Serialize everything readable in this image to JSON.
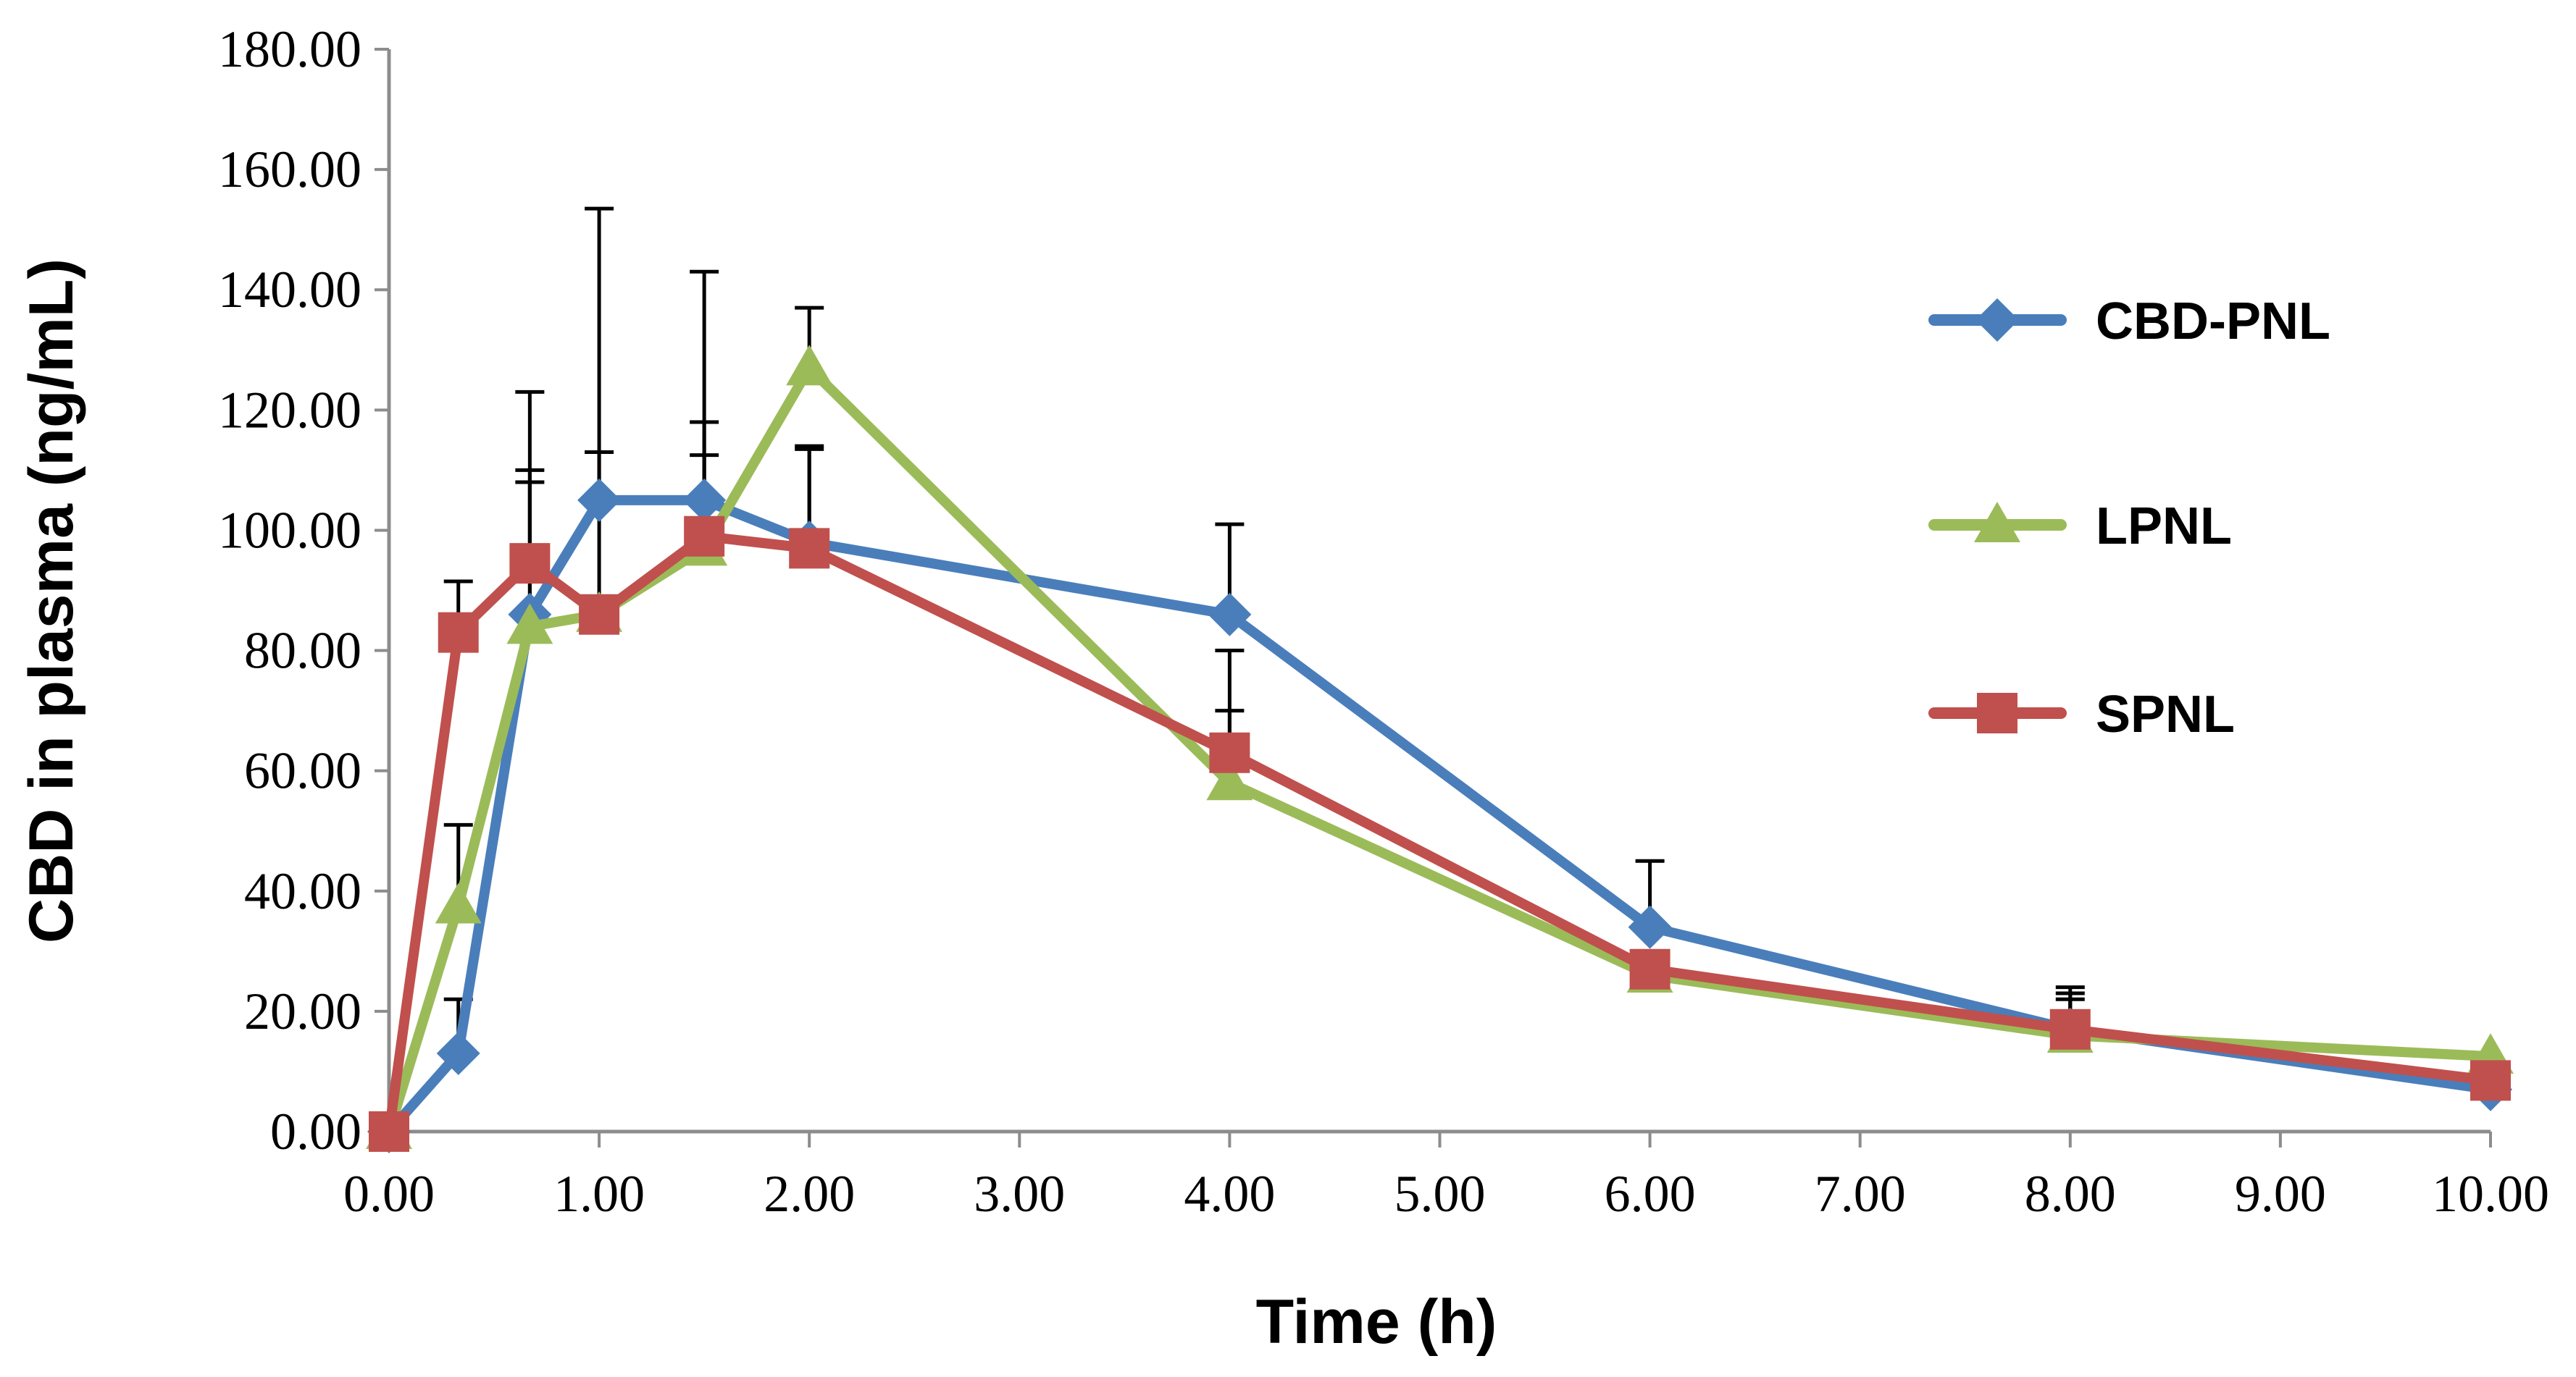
{
  "chart_data": {
    "type": "line",
    "title": "",
    "xlabel": "Time (h)",
    "ylabel": "CBD in plasma (ng/mL)",
    "xlim": [
      0,
      10
    ],
    "ylim": [
      0,
      180
    ],
    "xticks": [
      "0.00",
      "1.00",
      "2.00",
      "3.00",
      "4.00",
      "5.00",
      "6.00",
      "7.00",
      "8.00",
      "9.00",
      "10.00"
    ],
    "yticks": [
      "0.00",
      "20.00",
      "40.00",
      "60.00",
      "80.00",
      "100.00",
      "120.00",
      "140.00",
      "160.00",
      "180.00"
    ],
    "grid": false,
    "legend_position": "right",
    "x": [
      0,
      0.33,
      0.67,
      1.0,
      1.5,
      2.0,
      4.0,
      6.0,
      8.0,
      10.0
    ],
    "series": [
      {
        "name": "CBD-PNL",
        "color": "#4a7ebb",
        "marker": "diamond",
        "values": [
          0,
          13,
          86,
          105,
          105,
          98,
          86,
          34,
          17,
          7
        ],
        "error_upper": [
          0,
          9,
          24,
          48.5,
          38,
          16,
          15,
          11,
          7,
          0
        ]
      },
      {
        "name": "LPNL",
        "color": "#9bbb59",
        "marker": "triangle",
        "values": [
          0,
          37.5,
          84,
          86,
          97,
          127,
          58,
          26,
          16,
          12.5
        ],
        "error_upper": [
          0,
          13.5,
          24,
          27,
          21,
          10,
          12,
          0,
          6,
          0
        ]
      },
      {
        "name": "SPNL",
        "color": "#c0504d",
        "marker": "square",
        "values": [
          0,
          83,
          94.5,
          86,
          99,
          97,
          63,
          27,
          17,
          8.5
        ],
        "error_upper": [
          0,
          8.5,
          28.5,
          0,
          13.5,
          16.5,
          17,
          0,
          6,
          0
        ]
      }
    ]
  }
}
